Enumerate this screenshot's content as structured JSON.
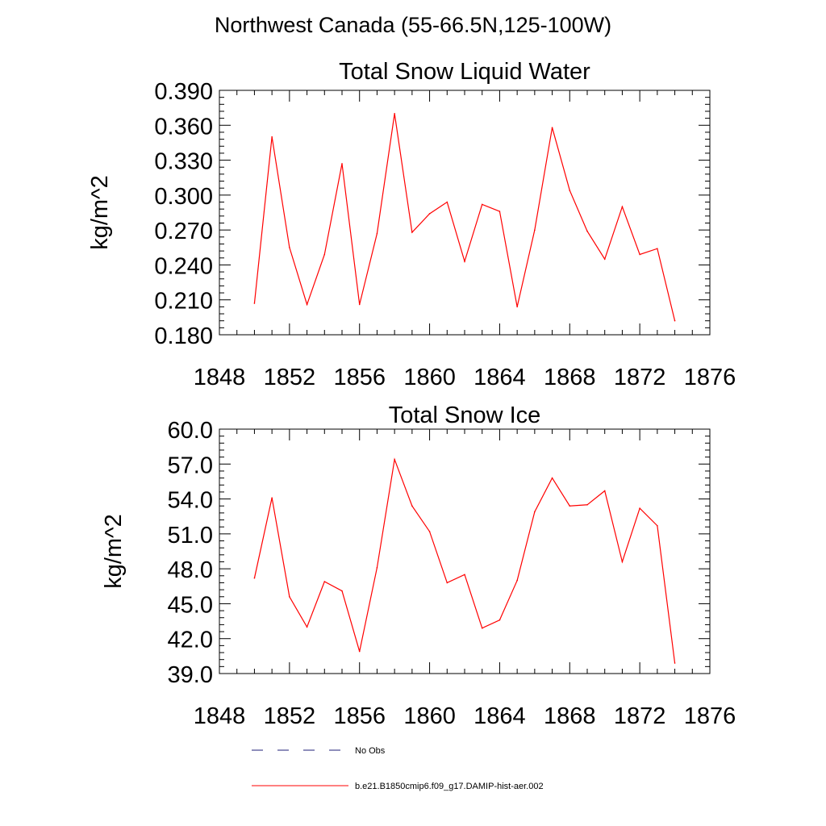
{
  "figure": {
    "suptitle": "Northwest Canada (55-66.5N,125-100W)"
  },
  "legend": {
    "items": [
      {
        "label": "No Obs",
        "style": "dashed",
        "color": "#1f1f7a"
      },
      {
        "label": "b.e21.B1850cmip6.f09_g17.DAMIP-hist-aer.002",
        "style": "solid",
        "color": "#ff0000"
      }
    ]
  },
  "chart_data": [
    {
      "type": "line",
      "title": "Total Snow Liquid Water",
      "xlabel": "",
      "ylabel": "kg/m^2",
      "xlim": [
        1848,
        1876
      ],
      "ylim": [
        0.18,
        0.39
      ],
      "xticks": [
        1848,
        1852,
        1856,
        1860,
        1864,
        1868,
        1872,
        1876
      ],
      "x_tick_labels": [
        "1848",
        "1852",
        "1856",
        "1860",
        "1864",
        "1868",
        "1872",
        "1876"
      ],
      "yticks": [
        0.18,
        0.21,
        0.24,
        0.27,
        0.3,
        0.33,
        0.36,
        0.39
      ],
      "y_tick_labels": [
        "0.180",
        "0.210",
        "0.240",
        "0.270",
        "0.300",
        "0.330",
        "0.360",
        "0.390"
      ],
      "grid": false,
      "series": [
        {
          "name": "b.e21.B1850cmip6.f09_g17.DAMIP-hist-aer.002",
          "color": "#ff0000",
          "x": [
            1850,
            1851,
            1852,
            1853,
            1854,
            1855,
            1856,
            1857,
            1858,
            1859,
            1860,
            1861,
            1862,
            1863,
            1864,
            1865,
            1866,
            1867,
            1868,
            1869,
            1870,
            1871,
            1872,
            1873,
            1874
          ],
          "y": [
            0.207,
            0.35,
            0.255,
            0.206,
            0.249,
            0.327,
            0.206,
            0.267,
            0.37,
            0.268,
            0.284,
            0.294,
            0.243,
            0.292,
            0.286,
            0.204,
            0.27,
            0.358,
            0.304,
            0.269,
            0.245,
            0.29,
            0.249,
            0.254,
            0.192
          ]
        }
      ]
    },
    {
      "type": "line",
      "title": "Total Snow Ice",
      "xlabel": "",
      "ylabel": "kg/m^2",
      "xlim": [
        1848,
        1876
      ],
      "ylim": [
        39.0,
        60.0
      ],
      "xticks": [
        1848,
        1852,
        1856,
        1860,
        1864,
        1868,
        1872,
        1876
      ],
      "x_tick_labels": [
        "1848",
        "1852",
        "1856",
        "1860",
        "1864",
        "1868",
        "1872",
        "1876"
      ],
      "yticks": [
        39,
        42,
        45,
        48,
        51,
        54,
        57,
        60
      ],
      "y_tick_labels": [
        "39.0",
        "42.0",
        "45.0",
        "48.0",
        "51.0",
        "54.0",
        "57.0",
        "60.0"
      ],
      "grid": false,
      "series": [
        {
          "name": "b.e21.B1850cmip6.f09_g17.DAMIP-hist-aer.002",
          "color": "#ff0000",
          "x": [
            1850,
            1851,
            1852,
            1853,
            1854,
            1855,
            1856,
            1857,
            1858,
            1859,
            1860,
            1861,
            1862,
            1863,
            1864,
            1865,
            1866,
            1867,
            1868,
            1869,
            1870,
            1871,
            1872,
            1873,
            1874
          ],
          "y": [
            47.2,
            54.1,
            45.6,
            43.0,
            46.9,
            46.1,
            40.9,
            48.1,
            57.4,
            53.4,
            51.2,
            46.8,
            47.5,
            42.9,
            43.6,
            47.0,
            52.9,
            55.8,
            53.4,
            53.5,
            54.7,
            48.6,
            53.2,
            51.7,
            39.9
          ]
        }
      ]
    }
  ]
}
